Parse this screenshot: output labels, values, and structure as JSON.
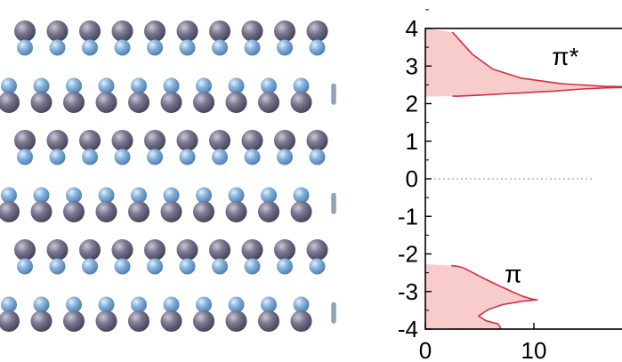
{
  "lattice": {
    "atom_colors": {
      "large": "#6f6d80",
      "small": "#7ea9d6",
      "bond": "#8fa2b8"
    }
  },
  "chart_data": {
    "type": "area",
    "orientation": "horizontal-density",
    "ylim": [
      -4,
      4
    ],
    "yticks": [
      4,
      3,
      2,
      1,
      0,
      -1,
      -2,
      -3,
      -4
    ],
    "ytick_labels": [
      "4",
      "3",
      "2",
      "1",
      "0",
      "-1",
      "-2",
      "-3",
      "-4"
    ],
    "xticks": [
      0,
      10
    ],
    "xtick_labels": [
      "0",
      "10"
    ],
    "fermi_level": 0,
    "fill_color": "#f9cccc",
    "line_color": "#d33040",
    "annotations": [
      {
        "id": "pi-star",
        "text": "π*",
        "x": 12.9,
        "y": 3.27
      },
      {
        "id": "pi",
        "text": "π",
        "x": 8.1,
        "y": -2.52
      }
    ],
    "series": [
      {
        "x": [
          0,
          2.5,
          3.1,
          3.9,
          4.7,
          5.8,
          7.1,
          8.6,
          10.2,
          11.8,
          13.0,
          14.5,
          16.5,
          18.3,
          20.0,
          16.5,
          12.5,
          8.8,
          6.2,
          4.3,
          2.5,
          0
        ],
        "y": [
          2.19,
          2.2,
          2.2,
          2.21,
          2.22,
          2.24,
          2.26,
          2.28,
          2.31,
          2.33,
          2.36,
          2.39,
          2.42,
          2.43,
          2.44,
          2.46,
          2.53,
          2.68,
          2.92,
          3.32,
          3.9,
          4.0
        ]
      },
      {
        "x": [
          0,
          2.4,
          3.0,
          3.6,
          4.2,
          5.3,
          6.6,
          7.8,
          8.9,
          9.8,
          10.3,
          8.9,
          7.1,
          5.8,
          4.9,
          5.6,
          6.7,
          7.0,
          4.8,
          2.6,
          0
        ],
        "y": [
          -2.27,
          -2.31,
          -2.33,
          -2.38,
          -2.47,
          -2.64,
          -2.82,
          -2.98,
          -3.12,
          -3.2,
          -3.22,
          -3.26,
          -3.35,
          -3.48,
          -3.65,
          -3.78,
          -3.86,
          -4.0,
          -4.0,
          -4.0,
          -4.0
        ]
      }
    ]
  }
}
